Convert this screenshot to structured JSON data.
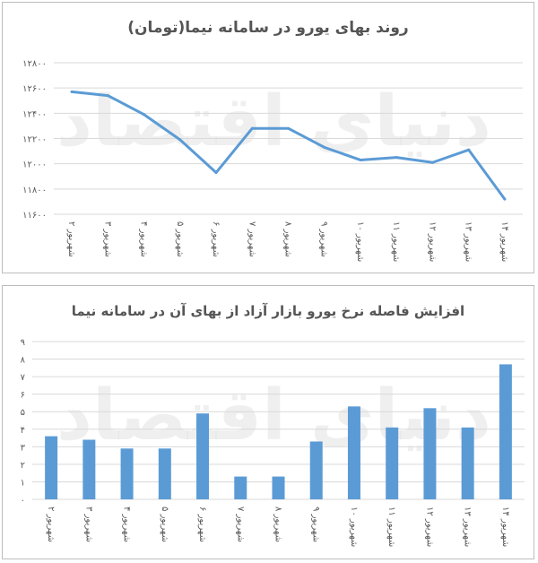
{
  "watermark": "دنیای اقتصاد",
  "chart_data": [
    {
      "type": "line",
      "title": "روند بهای یورو در سامانه نیما(تومان)",
      "categories": [
        "۲ شهریور",
        "۳ شهریور",
        "۴ شهریور",
        "۵ شهریور",
        "۶ شهریور",
        "۷ شهریور",
        "۸ شهریور",
        "۹ شهریور",
        "۱۰ شهریور",
        "۱۱ شهریور",
        "۱۲ شهریور",
        "۱۳ شهریور",
        "۱۴ شهریور"
      ],
      "series": [
        {
          "values": [
            12570,
            12540,
            12390,
            12190,
            11930,
            12280,
            12280,
            12130,
            12030,
            12050,
            12010,
            12110,
            11720
          ]
        }
      ],
      "yticks": [
        "۱۱۶۰۰",
        "۱۱۸۰۰",
        "۱۲۰۰۰",
        "۱۲۲۰۰",
        "۱۲۴۰۰",
        "۱۲۶۰۰",
        "۱۲۸۰۰"
      ],
      "ylim": [
        11600,
        12800
      ],
      "grid": true,
      "color": "#5b9bd5"
    },
    {
      "type": "bar",
      "title": "افزایش فاصله نرخ یورو بازار آزاد از بهای آن در سامانه نیما",
      "categories": [
        "۲ شهریور",
        "۳ شهریور",
        "۴ شهریور",
        "۵ شهریور",
        "۶ شهریور",
        "۷ شهریور",
        "۸ شهریور",
        "۹ شهریور",
        "۱۰ شهریور",
        "۱۱ شهریور",
        "۱۲ شهریور",
        "۱۳ شهریور",
        "۱۴ شهریور"
      ],
      "series": [
        {
          "values": [
            3.6,
            3.4,
            2.9,
            2.9,
            4.9,
            1.3,
            1.3,
            3.3,
            5.3,
            4.1,
            5.2,
            4.1,
            7.7
          ]
        }
      ],
      "yticks": [
        "۰",
        "۱",
        "۲",
        "۳",
        "۴",
        "۵",
        "۶",
        "۷",
        "۸",
        "۹"
      ],
      "ylim": [
        0,
        9
      ],
      "grid": true,
      "color": "#5b9bd5"
    }
  ]
}
